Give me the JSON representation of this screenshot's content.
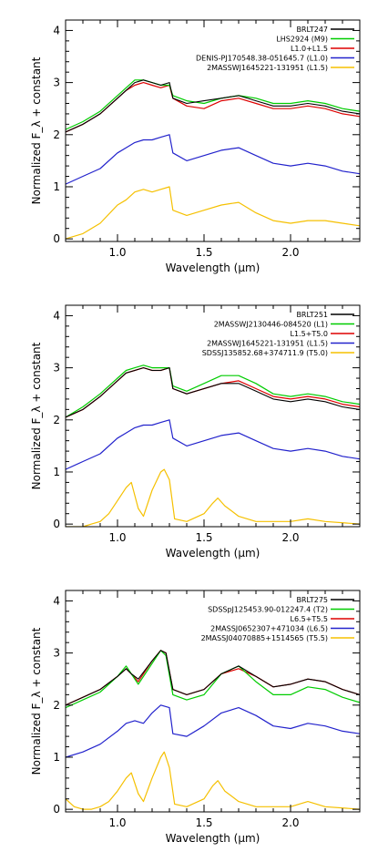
{
  "chart_data": [
    {
      "type": "line",
      "xlabel": "Wavelength (µm)",
      "ylabel": "Normalized F_λ + constant",
      "xlim": [
        0.7,
        2.4
      ],
      "ylim": [
        -0.05,
        4.2
      ],
      "xticks": [
        1.0,
        1.5,
        2.0
      ],
      "xtick_labels": [
        "1.0",
        "1.5",
        "2.0"
      ],
      "yticks": [
        0,
        1,
        2,
        3,
        4
      ],
      "ytick_labels": [
        "0",
        "1",
        "2",
        "3",
        "4"
      ],
      "legend_position": "top-right",
      "series": [
        {
          "name": "BRLT247",
          "color": "#000000",
          "x": [
            0.7,
            0.8,
            0.9,
            1.0,
            1.05,
            1.1,
            1.15,
            1.2,
            1.25,
            1.3,
            1.32,
            1.4,
            1.5,
            1.6,
            1.7,
            1.8,
            1.9,
            2.0,
            2.1,
            2.2,
            2.3,
            2.4
          ],
          "y": [
            2.05,
            2.2,
            2.4,
            2.7,
            2.85,
            3.0,
            3.05,
            3.0,
            2.95,
            3.0,
            2.7,
            2.6,
            2.65,
            2.7,
            2.75,
            2.65,
            2.55,
            2.55,
            2.6,
            2.55,
            2.45,
            2.4
          ]
        },
        {
          "name": "LHS2924 (M9)",
          "color": "#00cc00",
          "x": [
            0.7,
            0.8,
            0.9,
            1.0,
            1.05,
            1.1,
            1.15,
            1.2,
            1.25,
            1.3,
            1.32,
            1.4,
            1.5,
            1.6,
            1.7,
            1.8,
            1.9,
            2.0,
            2.1,
            2.2,
            2.3,
            2.4
          ],
          "y": [
            2.1,
            2.25,
            2.45,
            2.75,
            2.9,
            3.05,
            3.05,
            3.0,
            2.95,
            2.95,
            2.75,
            2.65,
            2.6,
            2.7,
            2.75,
            2.7,
            2.6,
            2.6,
            2.65,
            2.6,
            2.5,
            2.45
          ]
        },
        {
          "name": "L1.0+L1.5",
          "color": "#dd0000",
          "x": [
            0.7,
            0.8,
            0.9,
            1.0,
            1.05,
            1.1,
            1.15,
            1.2,
            1.25,
            1.3,
            1.32,
            1.4,
            1.5,
            1.6,
            1.7,
            1.8,
            1.9,
            2.0,
            2.1,
            2.2,
            2.3,
            2.4
          ],
          "y": [
            2.05,
            2.2,
            2.4,
            2.7,
            2.85,
            2.95,
            3.0,
            2.95,
            2.9,
            2.95,
            2.7,
            2.55,
            2.5,
            2.65,
            2.7,
            2.6,
            2.5,
            2.5,
            2.55,
            2.5,
            2.4,
            2.35
          ]
        },
        {
          "name": "DENIS-PJ170548.38-051645.7 (L1.0)",
          "color": "#2222cc",
          "x": [
            0.7,
            0.8,
            0.9,
            1.0,
            1.05,
            1.1,
            1.15,
            1.2,
            1.25,
            1.3,
            1.32,
            1.4,
            1.5,
            1.6,
            1.7,
            1.8,
            1.9,
            2.0,
            2.1,
            2.2,
            2.3,
            2.4
          ],
          "y": [
            1.05,
            1.2,
            1.35,
            1.65,
            1.75,
            1.85,
            1.9,
            1.9,
            1.95,
            2.0,
            1.65,
            1.5,
            1.6,
            1.7,
            1.75,
            1.6,
            1.45,
            1.4,
            1.45,
            1.4,
            1.3,
            1.25
          ]
        },
        {
          "name": "2MASSWJ1645221-131951 (L1.5)",
          "color": "#f5c000",
          "x": [
            0.7,
            0.8,
            0.9,
            1.0,
            1.05,
            1.1,
            1.15,
            1.2,
            1.25,
            1.3,
            1.32,
            1.4,
            1.5,
            1.6,
            1.7,
            1.8,
            1.9,
            2.0,
            2.1,
            2.2,
            2.3,
            2.4
          ],
          "y": [
            0.0,
            0.1,
            0.3,
            0.65,
            0.75,
            0.9,
            0.95,
            0.9,
            0.95,
            1.0,
            0.55,
            0.45,
            0.55,
            0.65,
            0.7,
            0.5,
            0.35,
            0.3,
            0.35,
            0.35,
            0.3,
            0.25
          ]
        }
      ]
    },
    {
      "type": "line",
      "xlabel": "Wavelength (µm)",
      "ylabel": "Normalized F_λ + constant",
      "xlim": [
        0.7,
        2.4
      ],
      "ylim": [
        -0.05,
        4.2
      ],
      "xticks": [
        1.0,
        1.5,
        2.0
      ],
      "xtick_labels": [
        "1.0",
        "1.5",
        "2.0"
      ],
      "yticks": [
        0,
        1,
        2,
        3,
        4
      ],
      "ytick_labels": [
        "0",
        "1",
        "2",
        "3",
        "4"
      ],
      "legend_position": "top-right",
      "series": [
        {
          "name": "BRLT251",
          "color": "#000000",
          "x": [
            0.7,
            0.8,
            0.9,
            1.0,
            1.05,
            1.1,
            1.15,
            1.2,
            1.25,
            1.3,
            1.32,
            1.4,
            1.5,
            1.6,
            1.7,
            1.8,
            1.9,
            2.0,
            2.1,
            2.2,
            2.3,
            2.4
          ],
          "y": [
            2.05,
            2.2,
            2.45,
            2.75,
            2.9,
            2.95,
            3.0,
            2.95,
            2.95,
            3.0,
            2.6,
            2.5,
            2.6,
            2.7,
            2.7,
            2.55,
            2.4,
            2.35,
            2.4,
            2.35,
            2.25,
            2.2
          ]
        },
        {
          "name": "2MASSWJ2130446-084520 (L1)",
          "color": "#00cc00",
          "x": [
            0.7,
            0.8,
            0.9,
            1.0,
            1.05,
            1.1,
            1.15,
            1.2,
            1.25,
            1.3,
            1.32,
            1.4,
            1.5,
            1.6,
            1.7,
            1.8,
            1.9,
            2.0,
            2.1,
            2.2,
            2.3,
            2.4
          ],
          "y": [
            2.05,
            2.25,
            2.5,
            2.8,
            2.95,
            3.0,
            3.05,
            3.0,
            3.0,
            3.0,
            2.65,
            2.55,
            2.7,
            2.85,
            2.85,
            2.7,
            2.5,
            2.45,
            2.5,
            2.45,
            2.35,
            2.3
          ]
        },
        {
          "name": "L1.5+T5.0",
          "color": "#dd0000",
          "x": [
            0.7,
            0.8,
            0.9,
            1.0,
            1.05,
            1.1,
            1.15,
            1.2,
            1.25,
            1.3,
            1.32,
            1.4,
            1.5,
            1.6,
            1.7,
            1.8,
            1.9,
            2.0,
            2.1,
            2.2,
            2.3,
            2.4
          ],
          "y": [
            2.05,
            2.2,
            2.45,
            2.75,
            2.9,
            2.95,
            3.0,
            2.95,
            2.95,
            3.0,
            2.6,
            2.5,
            2.6,
            2.7,
            2.75,
            2.6,
            2.45,
            2.4,
            2.45,
            2.4,
            2.3,
            2.25
          ]
        },
        {
          "name": "2MASSWJ1645221-131951 (L1.5)",
          "color": "#2222cc",
          "x": [
            0.7,
            0.8,
            0.9,
            1.0,
            1.05,
            1.1,
            1.15,
            1.2,
            1.25,
            1.3,
            1.32,
            1.4,
            1.5,
            1.6,
            1.7,
            1.8,
            1.9,
            2.0,
            2.1,
            2.2,
            2.3,
            2.4
          ],
          "y": [
            1.05,
            1.2,
            1.35,
            1.65,
            1.75,
            1.85,
            1.9,
            1.9,
            1.95,
            2.0,
            1.65,
            1.5,
            1.6,
            1.7,
            1.75,
            1.6,
            1.45,
            1.4,
            1.45,
            1.4,
            1.3,
            1.25
          ]
        },
        {
          "name": "SDSSJ135852.68+374711.9 (T5.0)",
          "color": "#f5c000",
          "x": [
            0.7,
            0.8,
            0.85,
            0.9,
            0.95,
            1.0,
            1.05,
            1.08,
            1.12,
            1.15,
            1.2,
            1.25,
            1.27,
            1.3,
            1.33,
            1.4,
            1.5,
            1.55,
            1.58,
            1.62,
            1.7,
            1.8,
            2.0,
            2.1,
            2.2,
            2.4
          ],
          "y": [
            -0.05,
            -0.05,
            0.0,
            0.05,
            0.2,
            0.45,
            0.7,
            0.8,
            0.3,
            0.15,
            0.65,
            1.0,
            1.05,
            0.85,
            0.1,
            0.05,
            0.2,
            0.4,
            0.5,
            0.35,
            0.15,
            0.05,
            0.05,
            0.1,
            0.05,
            0.0
          ]
        }
      ]
    },
    {
      "type": "line",
      "xlabel": "Wavelength (µm)",
      "ylabel": "Normalized F_λ + constant",
      "xlim": [
        0.7,
        2.4
      ],
      "ylim": [
        -0.05,
        4.2
      ],
      "xticks": [
        1.0,
        1.5,
        2.0
      ],
      "xtick_labels": [
        "1.0",
        "1.5",
        "2.0"
      ],
      "yticks": [
        0,
        1,
        2,
        3,
        4
      ],
      "ytick_labels": [
        "0",
        "1",
        "2",
        "3",
        "4"
      ],
      "legend_position": "top-right",
      "series": [
        {
          "name": "BRLT275",
          "color": "#000000",
          "x": [
            0.7,
            0.8,
            0.9,
            1.0,
            1.05,
            1.08,
            1.12,
            1.2,
            1.25,
            1.28,
            1.32,
            1.4,
            1.5,
            1.6,
            1.7,
            1.8,
            1.9,
            2.0,
            2.1,
            2.2,
            2.3,
            2.4
          ],
          "y": [
            2.0,
            2.15,
            2.3,
            2.55,
            2.7,
            2.6,
            2.5,
            2.85,
            3.05,
            3.0,
            2.3,
            2.2,
            2.3,
            2.6,
            2.75,
            2.55,
            2.35,
            2.4,
            2.5,
            2.45,
            2.3,
            2.2
          ]
        },
        {
          "name": "SDSSpJ125453.90-012247.4 (T2)",
          "color": "#00cc00",
          "x": [
            0.7,
            0.8,
            0.9,
            1.0,
            1.05,
            1.08,
            1.12,
            1.2,
            1.25,
            1.28,
            1.32,
            1.4,
            1.5,
            1.6,
            1.7,
            1.8,
            1.9,
            2.0,
            2.1,
            2.2,
            2.3,
            2.4
          ],
          "y": [
            1.95,
            2.1,
            2.25,
            2.55,
            2.75,
            2.6,
            2.4,
            2.8,
            3.05,
            2.95,
            2.2,
            2.1,
            2.2,
            2.6,
            2.75,
            2.45,
            2.2,
            2.2,
            2.35,
            2.3,
            2.15,
            2.05
          ]
        },
        {
          "name": "L6.5+T5.5",
          "color": "#dd0000",
          "x": [
            0.7,
            0.8,
            0.9,
            1.0,
            1.05,
            1.08,
            1.12,
            1.2,
            1.25,
            1.28,
            1.32,
            1.4,
            1.5,
            1.6,
            1.7,
            1.8,
            1.9,
            2.0,
            2.1,
            2.2,
            2.3,
            2.4
          ],
          "y": [
            2.0,
            2.15,
            2.3,
            2.55,
            2.7,
            2.6,
            2.45,
            2.85,
            3.05,
            3.0,
            2.3,
            2.2,
            2.3,
            2.6,
            2.7,
            2.55,
            2.35,
            2.4,
            2.5,
            2.45,
            2.3,
            2.2
          ]
        },
        {
          "name": "2MASSJ0652307+471034 (L6.5)",
          "color": "#2222cc",
          "x": [
            0.7,
            0.8,
            0.9,
            1.0,
            1.05,
            1.1,
            1.15,
            1.2,
            1.25,
            1.3,
            1.32,
            1.4,
            1.5,
            1.6,
            1.7,
            1.8,
            1.9,
            2.0,
            2.1,
            2.2,
            2.3,
            2.4
          ],
          "y": [
            1.0,
            1.1,
            1.25,
            1.5,
            1.65,
            1.7,
            1.65,
            1.85,
            2.0,
            1.95,
            1.45,
            1.4,
            1.6,
            1.85,
            1.95,
            1.8,
            1.6,
            1.55,
            1.65,
            1.6,
            1.5,
            1.45
          ]
        },
        {
          "name": "2MASSJ04070885+1514565 (T5.5)",
          "color": "#f5c000",
          "x": [
            0.7,
            0.75,
            0.8,
            0.85,
            0.9,
            0.95,
            1.0,
            1.05,
            1.08,
            1.12,
            1.15,
            1.2,
            1.25,
            1.27,
            1.3,
            1.33,
            1.4,
            1.5,
            1.55,
            1.58,
            1.62,
            1.7,
            1.8,
            2.0,
            2.1,
            2.2,
            2.4
          ],
          "y": [
            0.2,
            0.05,
            0.0,
            0.0,
            0.05,
            0.15,
            0.35,
            0.6,
            0.7,
            0.3,
            0.15,
            0.6,
            1.0,
            1.1,
            0.8,
            0.1,
            0.05,
            0.2,
            0.45,
            0.55,
            0.35,
            0.15,
            0.05,
            0.05,
            0.15,
            0.05,
            0.0
          ]
        }
      ]
    }
  ]
}
